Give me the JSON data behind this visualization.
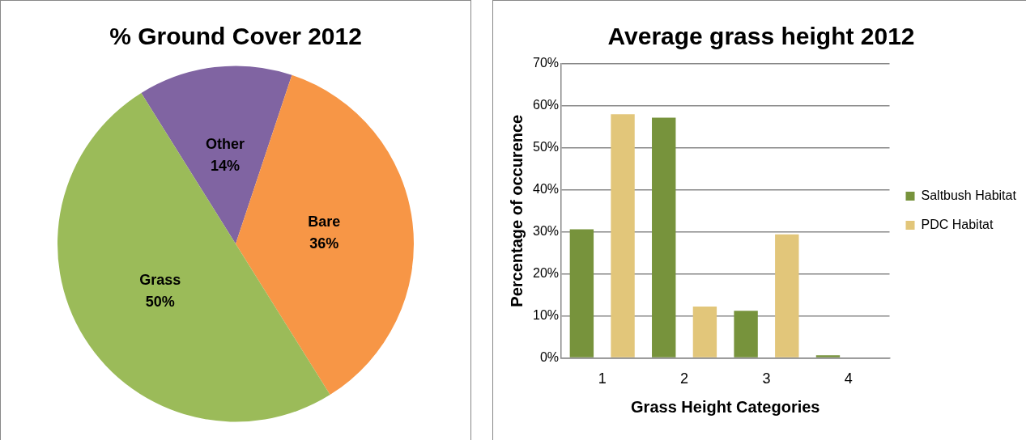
{
  "chart_data": [
    {
      "type": "pie",
      "title": "% Ground Cover 2012",
      "categories": [
        "Other",
        "Bare",
        "Grass"
      ],
      "values": [
        14,
        36,
        50
      ],
      "colors": [
        "#8064a2",
        "#f79646",
        "#9bbb59"
      ],
      "value_labels": [
        "14%",
        "36%",
        "50%"
      ],
      "legend": false
    },
    {
      "type": "bar",
      "title": "Average grass height 2012",
      "xlabel": "Grass Height Categories",
      "ylabel": "Percentage of occurence",
      "categories": [
        "1",
        "2",
        "3",
        "4"
      ],
      "series": [
        {
          "name": "Saltbush Habitat",
          "color": "#77933c",
          "values": [
            30.6,
            57.2,
            11.2,
            0.6
          ]
        },
        {
          "name": "PDC Habitat",
          "color": "#e2c67a",
          "values": [
            58.0,
            12.2,
            29.4,
            0
          ]
        }
      ],
      "ylim": [
        0,
        70
      ],
      "yticks": [
        {
          "value": 0,
          "label": "0%"
        },
        {
          "value": 10,
          "label": "10%"
        },
        {
          "value": 20,
          "label": "20%"
        },
        {
          "value": 30,
          "label": "30%"
        },
        {
          "value": 40,
          "label": "40%"
        },
        {
          "value": 50,
          "label": "50%"
        },
        {
          "value": 60,
          "label": "60%"
        },
        {
          "value": 70,
          "label": "70%"
        }
      ],
      "grid": "y",
      "legend": "right"
    }
  ]
}
